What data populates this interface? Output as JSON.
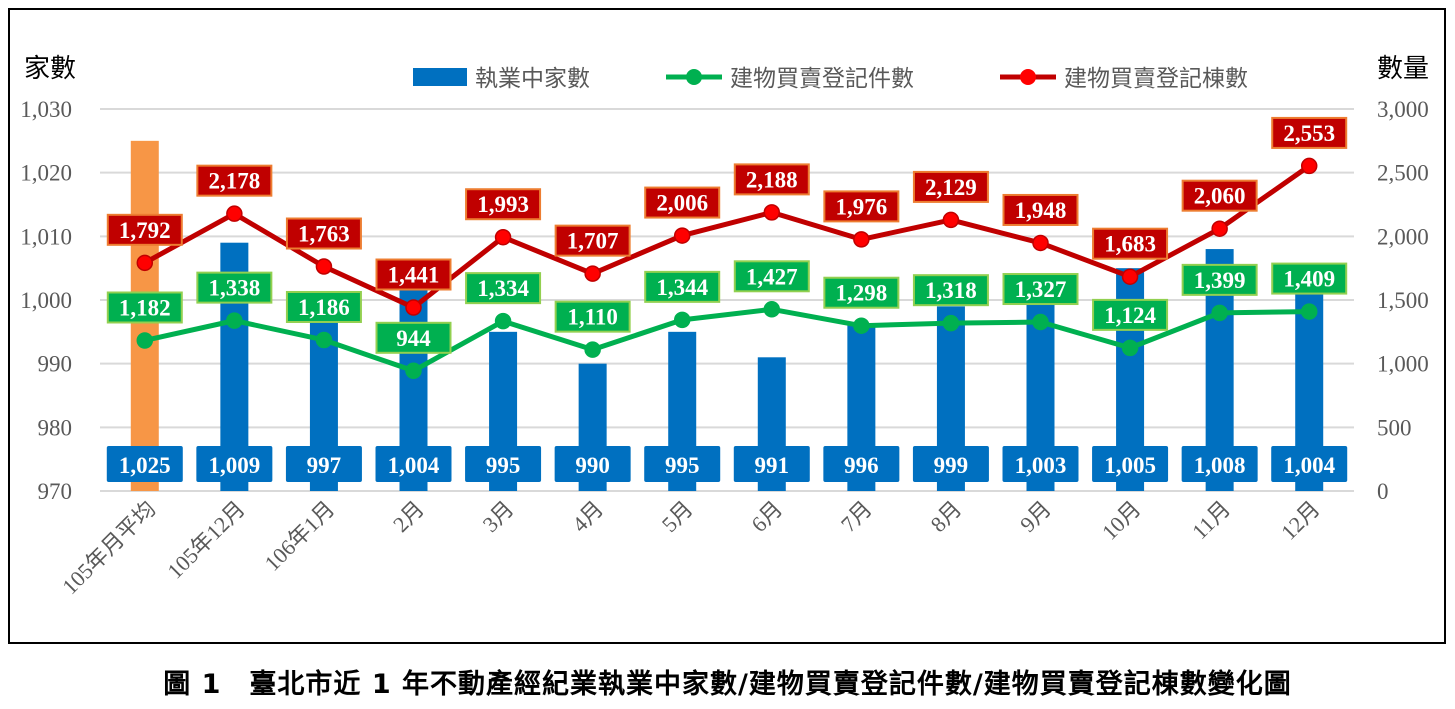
{
  "chart_data": {
    "type": "bar+line",
    "categories": [
      "105年月平均",
      "105年12月",
      "106年1月",
      "2月",
      "3月",
      "4月",
      "5月",
      "6月",
      "7月",
      "8月",
      "9月",
      "10月",
      "11月",
      "12月"
    ],
    "left_axis": {
      "label": "家數",
      "ylim": [
        970,
        1030
      ],
      "ticks": [
        970,
        980,
        990,
        1000,
        1010,
        1020,
        1030
      ],
      "tick_labels": [
        "970",
        "980",
        "990",
        "1,000",
        "1,010",
        "1,020",
        "1,030"
      ]
    },
    "right_axis": {
      "label": "數量",
      "ylim": [
        0,
        3000
      ],
      "ticks": [
        0,
        500,
        1000,
        1500,
        2000,
        2500,
        3000
      ],
      "tick_labels": [
        "0",
        "500",
        "1,000",
        "1,500",
        "2,000",
        "2,500",
        "3,000"
      ]
    },
    "grid": true,
    "legend_position": "top",
    "series": [
      {
        "name": "執業中家數",
        "type": "bar",
        "axis": "left",
        "color": "#0070C0",
        "highlight_color": "#F79646",
        "values": [
          1025,
          1009,
          997,
          1004,
          995,
          990,
          995,
          991,
          996,
          999,
          1003,
          1005,
          1008,
          1004
        ],
        "labels": [
          "1,025",
          "1,009",
          "997",
          "1,004",
          "995",
          "990",
          "995",
          "991",
          "996",
          "999",
          "1,003",
          "1,005",
          "1,008",
          "1,004"
        ]
      },
      {
        "name": "建物買賣登記件數",
        "type": "line",
        "axis": "right",
        "color": "#00B050",
        "label_border": "#92D050",
        "values": [
          1182,
          1338,
          1186,
          944,
          1334,
          1110,
          1344,
          1427,
          1298,
          1318,
          1327,
          1124,
          1399,
          1409
        ],
        "labels": [
          "1,182",
          "1,338",
          "1,186",
          "944",
          "1,334",
          "1,110",
          "1,344",
          "1,427",
          "1,298",
          "1,318",
          "1,327",
          "1,124",
          "1,399",
          "1,409"
        ]
      },
      {
        "name": "建物買賣登記棟數",
        "type": "line",
        "axis": "right",
        "color": "#C00000",
        "marker_color": "#FF0000",
        "label_border": "#ED7D31",
        "values": [
          1792,
          2178,
          1763,
          1441,
          1993,
          1707,
          2006,
          2188,
          1976,
          2129,
          1948,
          1683,
          2060,
          2553
        ],
        "labels": [
          "1,792",
          "2,178",
          "1,763",
          "1,441",
          "1,993",
          "1,707",
          "2,006",
          "2,188",
          "1,976",
          "2,129",
          "1,948",
          "1,683",
          "2,060",
          "2,553"
        ]
      }
    ]
  },
  "caption": "圖 1　臺北市近 1 年不動產經紀業執業中家數/建物買賣登記件數/建物買賣登記棟數變化圖"
}
